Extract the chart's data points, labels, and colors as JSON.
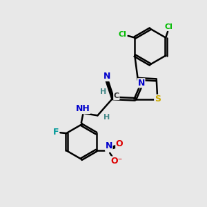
{
  "background_color": "#e8e8e8",
  "bond_color": "#000000",
  "bond_width": 1.8,
  "atom_colors": {
    "C": "#000000",
    "N": "#0000cc",
    "S": "#ccaa00",
    "Cl": "#00bb00",
    "F": "#009999",
    "O": "#dd0000",
    "H": "#448888"
  },
  "font_size": 9,
  "fig_size": [
    3.0,
    3.0
  ],
  "dpi": 100
}
